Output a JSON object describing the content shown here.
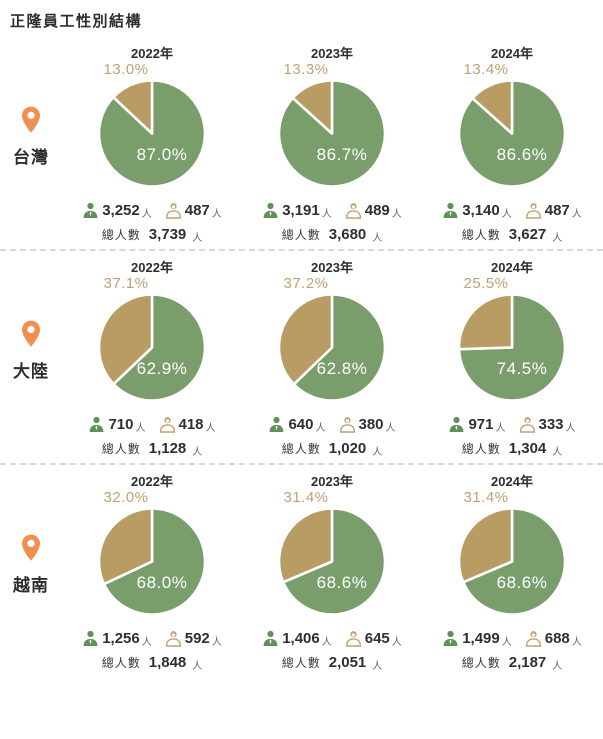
{
  "title": "正隆員工性別結構",
  "unit_person": "人",
  "total_label": "總人數",
  "icons": {
    "male": "male-person-icon",
    "female": "female-person-icon",
    "region_marker": "location-pin-icon"
  },
  "colors": {
    "male_slice": "#799e6c",
    "female_slice": "#b99c64",
    "female_label_text": "#c0a173",
    "male_label_text": "#ffffff",
    "pin_orange": "#f09050",
    "text_dark": "#2f2f2f"
  },
  "chart_data": {
    "type": "pie",
    "title": "正隆員工性別結構",
    "legend": [
      "男 (green)",
      "女 (tan)"
    ],
    "years": [
      "2022年",
      "2023年",
      "2024年"
    ],
    "regions": [
      {
        "name": "台灣",
        "charts": [
          {
            "year": "2022年",
            "male_value": 87.0,
            "female_value": 13.0,
            "male_pct": "87.0%",
            "female_pct": "13.0%",
            "male_count": "3,252",
            "female_count": "487",
            "total": "3,739"
          },
          {
            "year": "2023年",
            "male_value": 86.7,
            "female_value": 13.3,
            "male_pct": "86.7%",
            "female_pct": "13.3%",
            "male_count": "3,191",
            "female_count": "489",
            "total": "3,680"
          },
          {
            "year": "2024年",
            "male_value": 86.6,
            "female_value": 13.4,
            "male_pct": "86.6%",
            "female_pct": "13.4%",
            "male_count": "3,140",
            "female_count": "487",
            "total": "3,627"
          }
        ]
      },
      {
        "name": "大陸",
        "charts": [
          {
            "year": "2022年",
            "male_value": 62.9,
            "female_value": 37.1,
            "male_pct": "62.9%",
            "female_pct": "37.1%",
            "male_count": "710",
            "female_count": "418",
            "total": "1,128"
          },
          {
            "year": "2023年",
            "male_value": 62.8,
            "female_value": 37.2,
            "male_pct": "62.8%",
            "female_pct": "37.2%",
            "male_count": "640",
            "female_count": "380",
            "total": "1,020"
          },
          {
            "year": "2024年",
            "male_value": 74.5,
            "female_value": 25.5,
            "male_pct": "74.5%",
            "female_pct": "25.5%",
            "male_count": "971",
            "female_count": "333",
            "total": "1,304"
          }
        ]
      },
      {
        "name": "越南",
        "charts": [
          {
            "year": "2022年",
            "male_value": 68.0,
            "female_value": 32.0,
            "male_pct": "68.0%",
            "female_pct": "32.0%",
            "male_count": "1,256",
            "female_count": "592",
            "total": "1,848"
          },
          {
            "year": "2023年",
            "male_value": 68.6,
            "female_value": 31.4,
            "male_pct": "68.6%",
            "female_pct": "31.4%",
            "male_count": "1,406",
            "female_count": "645",
            "total": "2,051"
          },
          {
            "year": "2024年",
            "male_value": 68.6,
            "female_value": 31.4,
            "male_pct": "68.6%",
            "female_pct": "31.4%",
            "male_count": "1,499",
            "female_count": "688",
            "total": "2,187"
          }
        ]
      }
    ]
  }
}
